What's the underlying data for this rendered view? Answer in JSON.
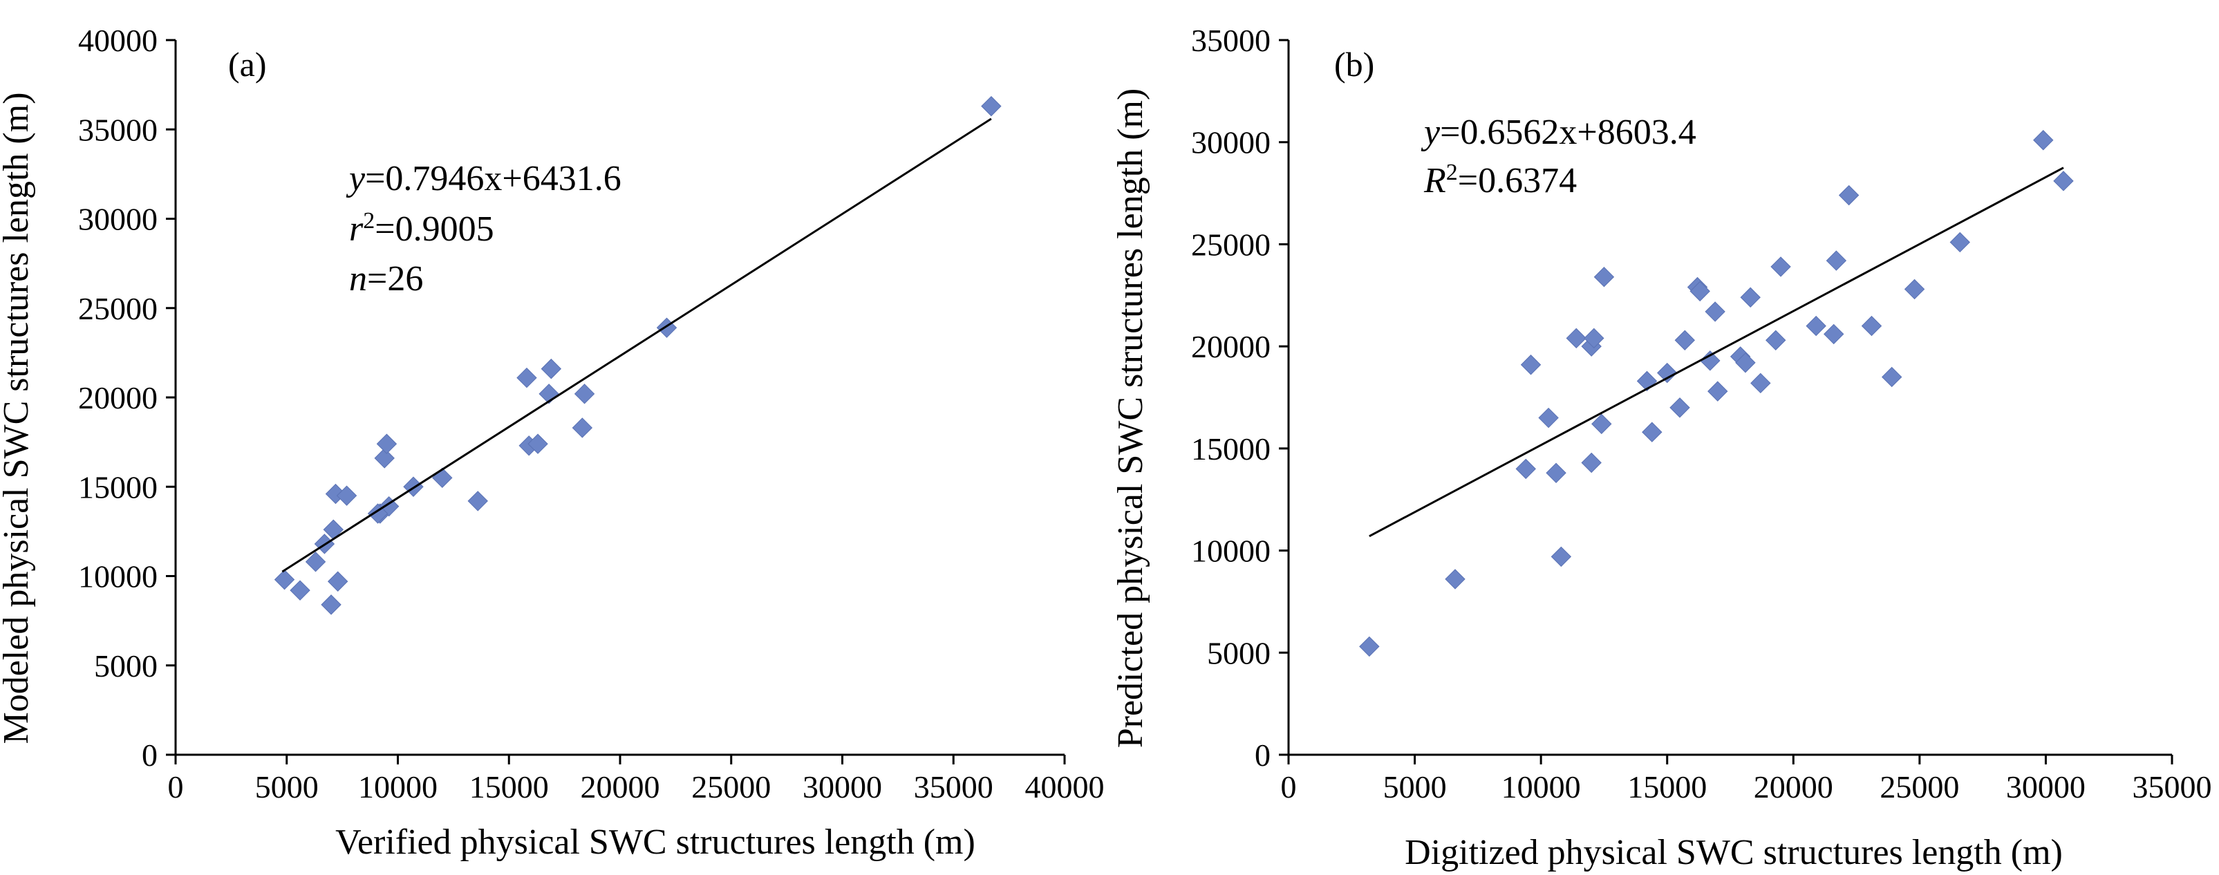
{
  "chart_data": [
    {
      "type": "scatter",
      "panel_label": "(a)",
      "xlabel": "Verified  physical SWC structures  length (m)",
      "ylabel": "Modeled physical SWC structures length (m)",
      "xlim": [
        0,
        40000
      ],
      "ylim": [
        0,
        40000
      ],
      "xticks": [
        0,
        5000,
        10000,
        15000,
        20000,
        25000,
        30000,
        35000,
        40000
      ],
      "yticks": [
        0,
        5000,
        10000,
        15000,
        20000,
        25000,
        30000,
        35000,
        40000
      ],
      "xtick_labels": [
        "0",
        "5000",
        "10000",
        "15000",
        "20000",
        "25000",
        "30000",
        "35000",
        "40000"
      ],
      "ytick_labels": [
        "0",
        "5000",
        "10000",
        "15000",
        "20000",
        "25000",
        "30000",
        "35000",
        "40000"
      ],
      "equation": {
        "line1_var": "y",
        "line1_rest": "=0.7946x+6431.6",
        "line2_var": "r",
        "line2_sup": "2",
        "line2_rest": "=0.9005",
        "line3_var": "n",
        "line3_rest": "=26"
      },
      "fit": {
        "slope": 0.7946,
        "intercept": 6431.6,
        "x_range": [
          4800,
          36700
        ]
      },
      "points": [
        [
          4900,
          9800
        ],
        [
          5600,
          9200
        ],
        [
          6300,
          10800
        ],
        [
          6700,
          11800
        ],
        [
          7000,
          8400
        ],
        [
          7100,
          12600
        ],
        [
          7200,
          14600
        ],
        [
          7300,
          9700
        ],
        [
          7700,
          14500
        ],
        [
          9200,
          13500
        ],
        [
          9400,
          16600
        ],
        [
          9500,
          17400
        ],
        [
          9600,
          13900
        ],
        [
          10700,
          15000
        ],
        [
          12000,
          15500
        ],
        [
          13600,
          14200
        ],
        [
          15800,
          21100
        ],
        [
          15900,
          17300
        ],
        [
          16300,
          17400
        ],
        [
          16800,
          20200
        ],
        [
          16900,
          21600
        ],
        [
          18300,
          18300
        ],
        [
          18400,
          20200
        ],
        [
          22100,
          23900
        ],
        [
          36700,
          36300
        ],
        [
          9100,
          13500
        ]
      ]
    },
    {
      "type": "scatter",
      "panel_label": "(b)",
      "xlabel": "Digitized physical SWC structures length (m)",
      "ylabel": "Predicted physical SWC structures length (m)",
      "xlim": [
        0,
        35000
      ],
      "ylim": [
        0,
        35000
      ],
      "xticks": [
        0,
        5000,
        10000,
        15000,
        20000,
        25000,
        30000,
        35000
      ],
      "yticks": [
        0,
        5000,
        10000,
        15000,
        20000,
        25000,
        30000,
        35000
      ],
      "xtick_labels": [
        "0",
        "5000",
        "10000",
        "15000",
        "20000",
        "25000",
        "30000",
        "35000"
      ],
      "ytick_labels": [
        "0",
        "5000",
        "10000",
        "15000",
        "20000",
        "25000",
        "30000",
        "35000"
      ],
      "equation": {
        "line1_var": "y",
        "line1_rest": "=0.6562x+8603.4",
        "line2_var": "R",
        "line2_sup": "2",
        "line2_rest": "=0.6374"
      },
      "fit": {
        "slope": 0.6562,
        "intercept": 8603.4,
        "x_range": [
          3200,
          30700
        ]
      },
      "points": [
        [
          3200,
          5300
        ],
        [
          6600,
          8600
        ],
        [
          9400,
          14000
        ],
        [
          9600,
          19100
        ],
        [
          10300,
          16500
        ],
        [
          10600,
          13800
        ],
        [
          10800,
          9700
        ],
        [
          11400,
          20400
        ],
        [
          12000,
          14300
        ],
        [
          12000,
          20000
        ],
        [
          12100,
          20400
        ],
        [
          12400,
          16200
        ],
        [
          12500,
          23400
        ],
        [
          14200,
          18300
        ],
        [
          14400,
          15800
        ],
        [
          15000,
          18700
        ],
        [
          15500,
          17000
        ],
        [
          15700,
          20300
        ],
        [
          16200,
          22900
        ],
        [
          16300,
          22700
        ],
        [
          16700,
          19300
        ],
        [
          16900,
          21700
        ],
        [
          17000,
          17800
        ],
        [
          17900,
          19500
        ],
        [
          18100,
          19200
        ],
        [
          18300,
          22400
        ],
        [
          18700,
          18200
        ],
        [
          19300,
          20300
        ],
        [
          19500,
          23900
        ],
        [
          20900,
          21000
        ],
        [
          21600,
          20600
        ],
        [
          21700,
          24200
        ],
        [
          22200,
          27400
        ],
        [
          23100,
          21000
        ],
        [
          23900,
          18500
        ],
        [
          24800,
          22800
        ],
        [
          26600,
          25100
        ],
        [
          29900,
          30100
        ],
        [
          30700,
          28100
        ]
      ]
    }
  ]
}
